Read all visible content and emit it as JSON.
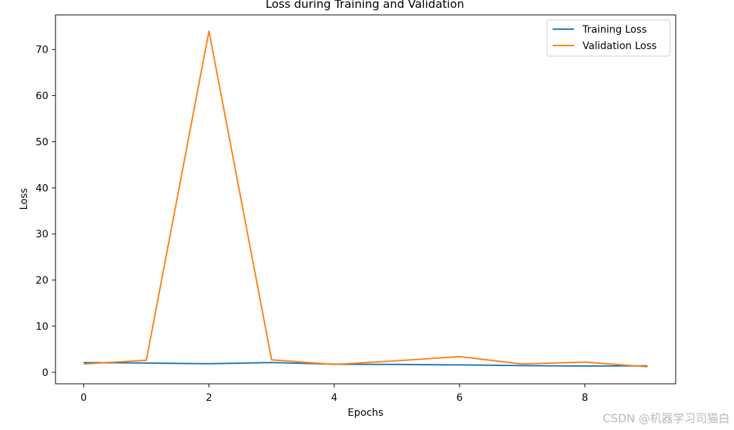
{
  "chart_data": {
    "type": "line",
    "title": "Loss during Training and Validation",
    "xlabel": "Epochs",
    "ylabel": "Loss",
    "x": [
      0,
      1,
      2,
      3,
      4,
      5,
      6,
      7,
      8,
      9
    ],
    "xlim": [
      -0.45,
      9.45
    ],
    "ylim": [
      -2.5,
      77.5
    ],
    "xticks": [
      0,
      2,
      4,
      6,
      8
    ],
    "yticks": [
      0,
      10,
      20,
      30,
      40,
      50,
      60,
      70
    ],
    "grid": false,
    "legend_position": "top-right",
    "series": [
      {
        "name": "Training Loss",
        "color": "#1f77b4",
        "values": [
          2.1,
          2.0,
          1.85,
          2.1,
          1.75,
          1.7,
          1.6,
          1.45,
          1.35,
          1.4
        ]
      },
      {
        "name": "Validation Loss",
        "color": "#ff7f0e",
        "values": [
          1.8,
          2.6,
          74.0,
          2.7,
          1.7,
          2.5,
          3.4,
          1.8,
          2.2,
          1.2
        ]
      }
    ]
  },
  "watermark": "CSDN @机器学习司猫白"
}
